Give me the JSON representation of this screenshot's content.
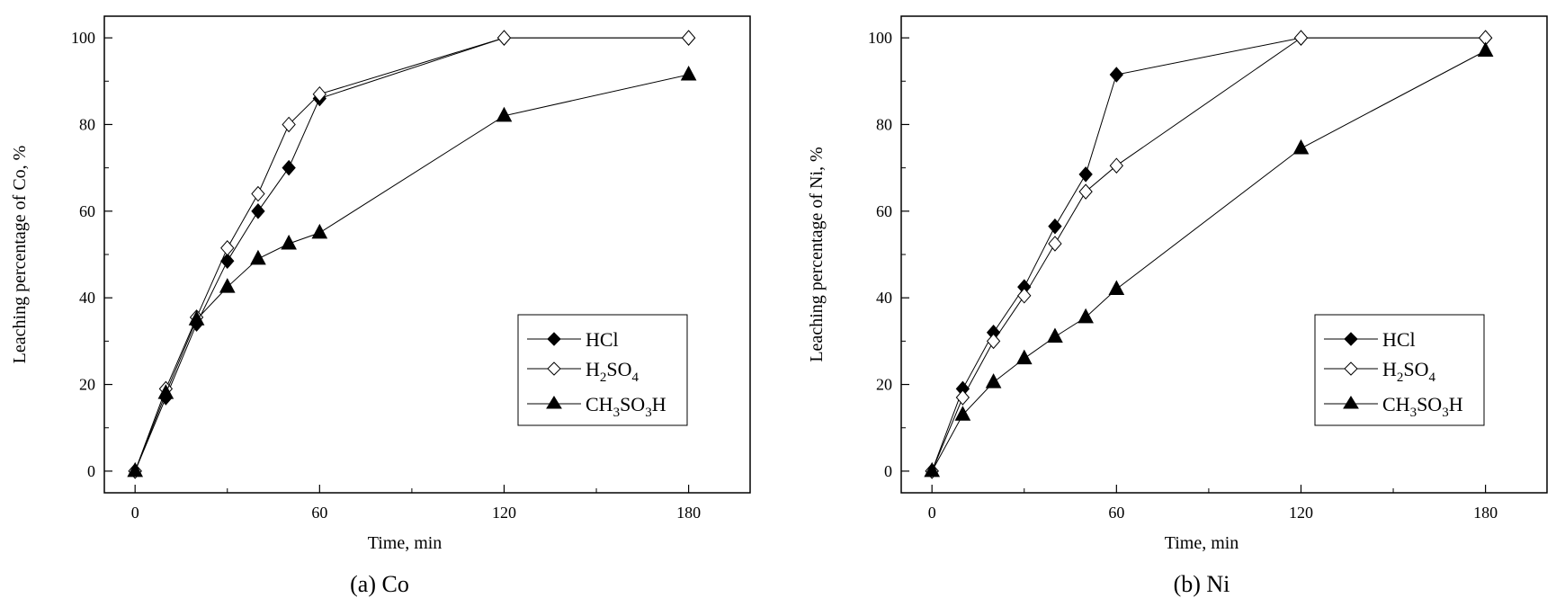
{
  "chart_data": [
    {
      "type": "line",
      "panel_caption": "(a) Co",
      "xlabel": "Time, min",
      "ylabel": "Leaching percentage of Co, %",
      "xlim": [
        -10,
        200
      ],
      "ylim": [
        -5,
        105
      ],
      "xticks": [
        0,
        60,
        120,
        180
      ],
      "yticks": [
        0,
        20,
        40,
        60,
        80,
        100
      ],
      "grid": false,
      "legend_position": "bottom-right",
      "series": [
        {
          "name": "HCl",
          "marker": "diamond-filled",
          "x": [
            0,
            10,
            20,
            30,
            40,
            50,
            60,
            120,
            180
          ],
          "y": [
            0,
            17,
            34,
            48.5,
            60,
            70,
            86,
            100,
            100
          ]
        },
        {
          "name": "H2SO4",
          "marker": "diamond-open",
          "x": [
            0,
            10,
            20,
            30,
            40,
            50,
            60,
            120,
            180
          ],
          "y": [
            0,
            19,
            35.5,
            51.5,
            64,
            80,
            87,
            100,
            100
          ]
        },
        {
          "name": "CH3SO3H",
          "marker": "triangle-filled",
          "x": [
            0,
            10,
            20,
            30,
            40,
            50,
            60,
            120,
            180
          ],
          "y": [
            0,
            18,
            35,
            42.5,
            49,
            52.5,
            55,
            82,
            91.5
          ]
        }
      ]
    },
    {
      "type": "line",
      "panel_caption": "(b) Ni",
      "xlabel": "Time, min",
      "ylabel": "Leaching percentage of Ni, %",
      "xlim": [
        -10,
        200
      ],
      "ylim": [
        -5,
        105
      ],
      "xticks": [
        0,
        60,
        120,
        180
      ],
      "yticks": [
        0,
        20,
        40,
        60,
        80,
        100
      ],
      "grid": false,
      "legend_position": "bottom-right",
      "series": [
        {
          "name": "HCl",
          "marker": "diamond-filled",
          "x": [
            0,
            10,
            20,
            30,
            40,
            50,
            60,
            120,
            180
          ],
          "y": [
            0,
            19,
            32,
            42.5,
            56.5,
            68.5,
            91.5,
            100,
            100
          ]
        },
        {
          "name": "H2SO4",
          "marker": "diamond-open",
          "x": [
            0,
            10,
            20,
            30,
            40,
            50,
            60,
            120,
            180
          ],
          "y": [
            0,
            17,
            30,
            40.5,
            52.5,
            64.5,
            70.5,
            100,
            100
          ]
        },
        {
          "name": "CH3SO3H",
          "marker": "triangle-filled",
          "x": [
            0,
            10,
            20,
            30,
            40,
            50,
            60,
            120,
            180
          ],
          "y": [
            0,
            13,
            20.5,
            26,
            31,
            35.5,
            42,
            74.5,
            97
          ]
        }
      ]
    }
  ]
}
